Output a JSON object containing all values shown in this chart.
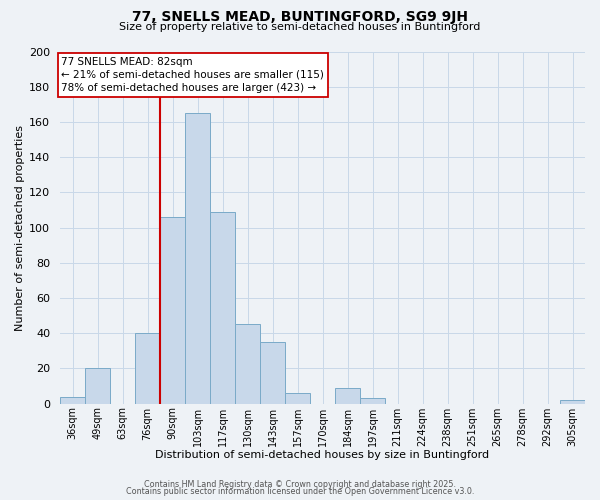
{
  "title": "77, SNELLS MEAD, BUNTINGFORD, SG9 9JH",
  "subtitle": "Size of property relative to semi-detached houses in Buntingford",
  "xlabel": "Distribution of semi-detached houses by size in Buntingford",
  "ylabel": "Number of semi-detached properties",
  "bin_labels": [
    "36sqm",
    "49sqm",
    "63sqm",
    "76sqm",
    "90sqm",
    "103sqm",
    "117sqm",
    "130sqm",
    "143sqm",
    "157sqm",
    "170sqm",
    "184sqm",
    "197sqm",
    "211sqm",
    "224sqm",
    "238sqm",
    "251sqm",
    "265sqm",
    "278sqm",
    "292sqm",
    "305sqm"
  ],
  "bar_heights": [
    4,
    20,
    0,
    40,
    106,
    165,
    109,
    45,
    35,
    6,
    0,
    9,
    3,
    0,
    0,
    0,
    0,
    0,
    0,
    0,
    2
  ],
  "bar_color": "#c8d8ea",
  "bar_edge_color": "#7aaac8",
  "vline_color": "#cc0000",
  "vline_bar_index": 4,
  "annotation_title": "77 SNELLS MEAD: 82sqm",
  "annotation_line1": "← 21% of semi-detached houses are smaller (115)",
  "annotation_line2": "78% of semi-detached houses are larger (423) →",
  "annotation_box_color": "#ffffff",
  "annotation_box_edge": "#cc0000",
  "ylim": [
    0,
    200
  ],
  "yticks": [
    0,
    20,
    40,
    60,
    80,
    100,
    120,
    140,
    160,
    180,
    200
  ],
  "grid_color": "#c8d8e8",
  "background_color": "#eef2f6",
  "footer1": "Contains HM Land Registry data © Crown copyright and database right 2025.",
  "footer2": "Contains public sector information licensed under the Open Government Licence v3.0."
}
